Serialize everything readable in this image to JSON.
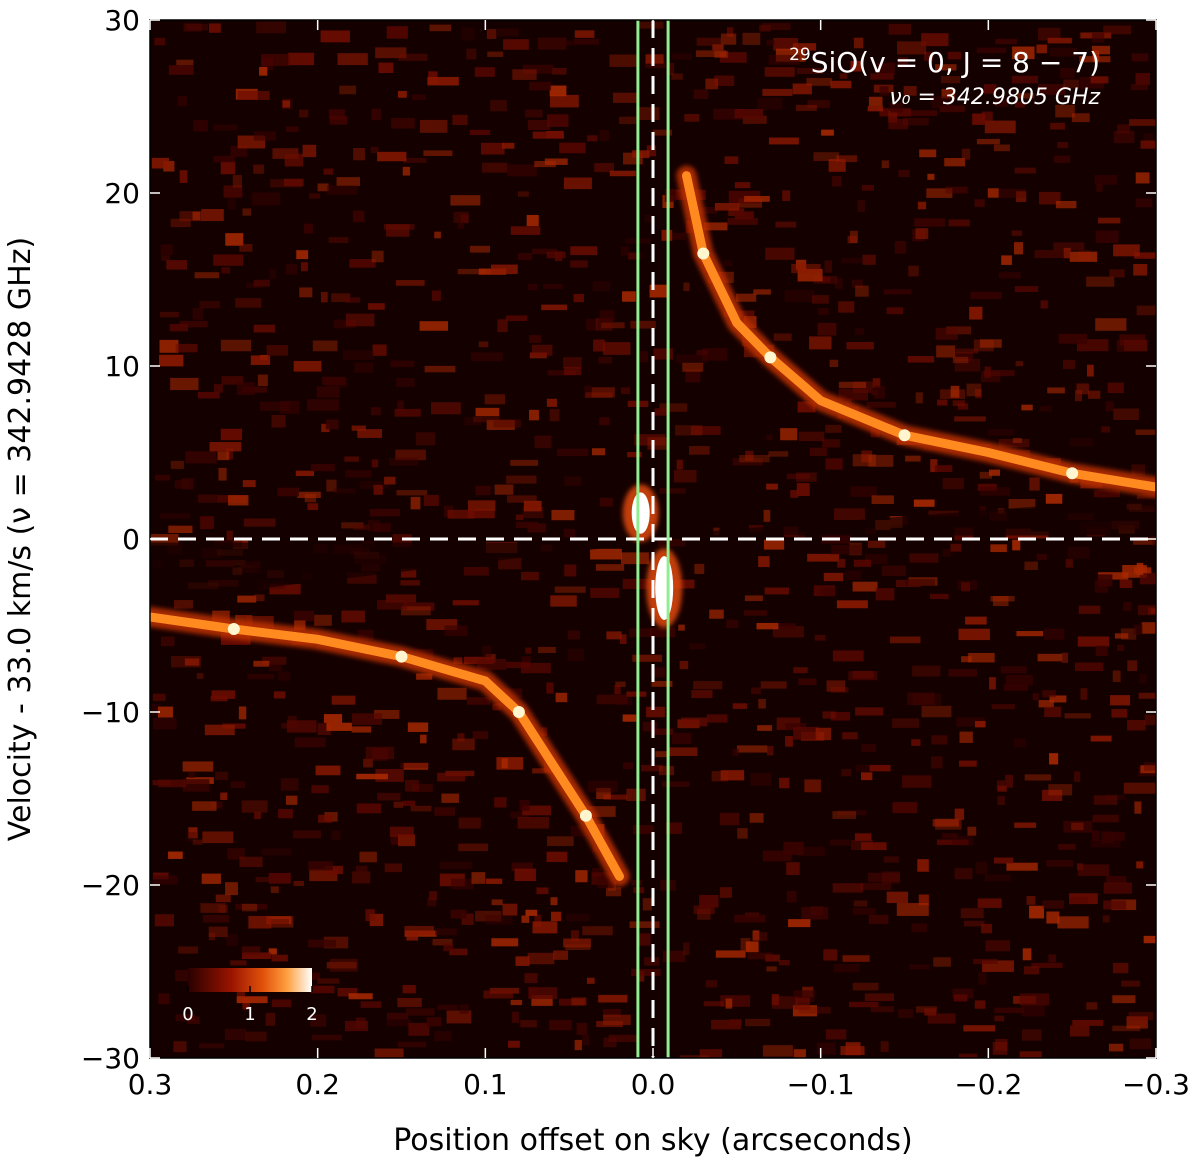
{
  "chart_data": {
    "type": "heatmap",
    "xlabel": "Position offset on sky (arcseconds)",
    "ylabel": "Velocity - 33.0 km/s (ν = 342.9428 GHz)",
    "xlim": [
      0.3,
      -0.3
    ],
    "ylim": [
      -30,
      30
    ],
    "xticks": [
      0.3,
      0.2,
      0.1,
      0.0,
      -0.1,
      -0.2,
      -0.3
    ],
    "xtick_labels": [
      "0.3",
      "0.2",
      "0.1",
      "0.0",
      "−0.1",
      "−0.2",
      "−0.3"
    ],
    "yticks": [
      -30,
      -20,
      -10,
      0,
      10,
      20,
      30
    ],
    "ytick_labels": [
      "−30",
      "−20",
      "−10",
      "0",
      "10",
      "20",
      "30"
    ],
    "colormap": "gist_heat",
    "colorbar": {
      "range": [
        0,
        2
      ],
      "tick_labels": [
        "0",
        "1",
        "2"
      ],
      "location": "lower-left"
    },
    "annotation": {
      "line1_superscript": "29",
      "line1_main": "SiO(v = 0,  J = 8 − 7)",
      "line2": "ν₀ = 342.9805 GHz",
      "location": "top-right"
    },
    "reference_lines": [
      {
        "orientation": "horizontal",
        "style": "dashed",
        "color": "#ffffff",
        "y": 0
      },
      {
        "orientation": "vertical",
        "style": "dashed",
        "color": "#ffffff",
        "x": 0.0
      },
      {
        "orientation": "vertical",
        "style": "solid",
        "color": "#90ee90",
        "x": 0.009
      },
      {
        "orientation": "vertical",
        "style": "solid",
        "color": "#90ee90",
        "x": -0.009
      }
    ],
    "emission_tracks": [
      {
        "name": "blue-shifted arm",
        "points": [
          [
            0.3,
            -4.5
          ],
          [
            0.25,
            -5.2
          ],
          [
            0.2,
            -5.8
          ],
          [
            0.15,
            -6.8
          ],
          [
            0.1,
            -8.2
          ],
          [
            0.08,
            -10.0
          ],
          [
            0.06,
            -13.0
          ],
          [
            0.04,
            -16.0
          ],
          [
            0.02,
            -19.5
          ]
        ]
      },
      {
        "name": "red-shifted arm",
        "points": [
          [
            -0.02,
            21.0
          ],
          [
            -0.03,
            16.5
          ],
          [
            -0.05,
            12.5
          ],
          [
            -0.07,
            10.5
          ],
          [
            -0.1,
            8.0
          ],
          [
            -0.15,
            6.0
          ],
          [
            -0.2,
            5.0
          ],
          [
            -0.25,
            3.8
          ],
          [
            -0.3,
            3.0
          ]
        ]
      },
      {
        "name": "central blob positive",
        "points": [
          [
            0.005,
            0.8
          ],
          [
            0.005,
            2.5
          ],
          [
            0.012,
            1.2
          ]
        ]
      },
      {
        "name": "central blob negative",
        "points": [
          [
            -0.005,
            -1.5
          ],
          [
            -0.01,
            -2.5
          ],
          [
            -0.005,
            -4.5
          ]
        ]
      }
    ]
  }
}
